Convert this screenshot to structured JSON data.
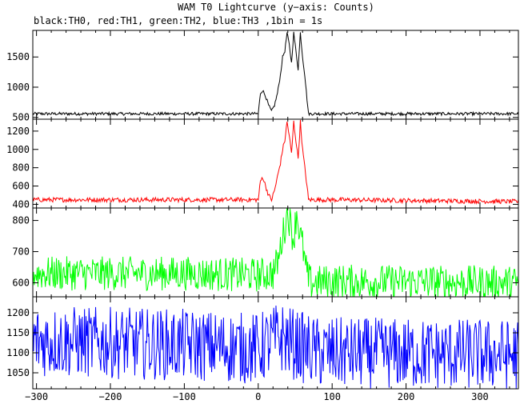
{
  "chart_data": {
    "type": "line",
    "title": "WAM T0 Lightcurve (y−axis: Counts)",
    "subtitle": "black:TH0, red:TH1, green:TH2, blue:TH3 ,1bin = 1s",
    "xlabel": "",
    "ylabel": "",
    "xlim": [
      -305,
      352
    ],
    "x_ticks": [
      -300,
      -200,
      -100,
      0,
      100,
      200,
      300
    ],
    "x_tick_labels": [
      "−300",
      "−200",
      "−100",
      "0",
      "100",
      "200",
      "300"
    ],
    "grid": false,
    "panels": [
      {
        "name": "TH0",
        "color": "#000000",
        "ylim": [
          470,
          1940
        ],
        "y_ticks": [
          500,
          1000,
          1500
        ],
        "baseline": 560,
        "noise": 25,
        "x": [
          -305,
          -100,
          0,
          3,
          6,
          10,
          14,
          18,
          22,
          26,
          30,
          33,
          36,
          39,
          42,
          45,
          48,
          51,
          54,
          57,
          60,
          63,
          66,
          68,
          72,
          100,
          352
        ],
        "values": [
          560,
          560,
          560,
          900,
          950,
          850,
          700,
          600,
          700,
          900,
          1200,
          1500,
          1600,
          1900,
          1700,
          1400,
          1900,
          1600,
          1300,
          1900,
          1500,
          1200,
          800,
          560,
          560,
          560,
          560
        ]
      },
      {
        "name": "TH1",
        "color": "#ff0000",
        "ylim": [
          360,
          1330
        ],
        "y_ticks": [
          400,
          600,
          800,
          1000,
          1200
        ],
        "baseline": 450,
        "noise": 25,
        "x": [
          -305,
          -100,
          0,
          3,
          6,
          10,
          14,
          18,
          22,
          26,
          30,
          33,
          36,
          39,
          42,
          45,
          48,
          51,
          54,
          57,
          60,
          63,
          66,
          68,
          72,
          100,
          352
        ],
        "values": [
          450,
          450,
          450,
          650,
          700,
          600,
          500,
          450,
          550,
          700,
          850,
          1000,
          1100,
          1300,
          1150,
          950,
          1300,
          1100,
          900,
          1300,
          1000,
          800,
          600,
          450,
          450,
          450,
          430
        ]
      },
      {
        "name": "TH2",
        "color": "#00ff00",
        "ylim": [
          555,
          840
        ],
        "y_ticks": [
          600,
          700,
          800
        ],
        "baseline": 630,
        "noise": 55,
        "x": [
          -305,
          -100,
          0,
          20,
          28,
          32,
          36,
          40,
          44,
          48,
          52,
          56,
          60,
          64,
          68,
          72,
          100,
          352
        ],
        "values": [
          630,
          630,
          625,
          630,
          680,
          740,
          780,
          830,
          780,
          740,
          830,
          760,
          720,
          650,
          610,
          600,
          605,
          600
        ]
      },
      {
        "name": "TH3",
        "color": "#0000ff",
        "ylim": [
          1010,
          1240
        ],
        "y_ticks": [
          1050,
          1100,
          1150,
          1200
        ],
        "baseline": 1120,
        "noise": 90,
        "x": [
          -305,
          -100,
          0,
          30,
          50,
          80,
          352
        ],
        "values": [
          1130,
          1120,
          1110,
          1140,
          1120,
          1100,
          1095
        ]
      }
    ]
  }
}
